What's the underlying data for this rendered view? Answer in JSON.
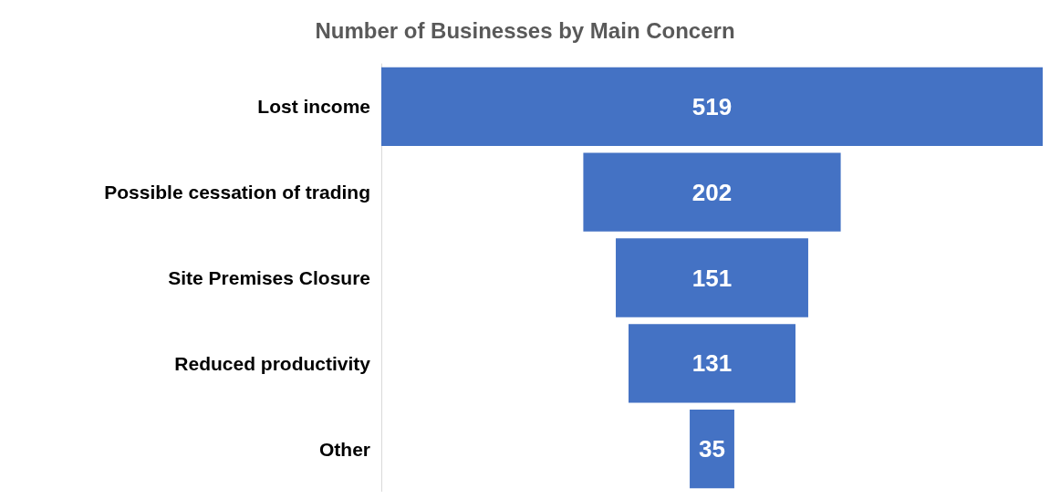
{
  "chart_data": {
    "type": "other",
    "title": "Number of Businesses by Main Concern",
    "categories": [
      "Lost income",
      "Possible cessation of trading",
      "Site Premises Closure",
      "Reduced productivity",
      "Other"
    ],
    "values": [
      519,
      202,
      151,
      131,
      35
    ],
    "color": "#4472c4",
    "data_labels": true
  }
}
